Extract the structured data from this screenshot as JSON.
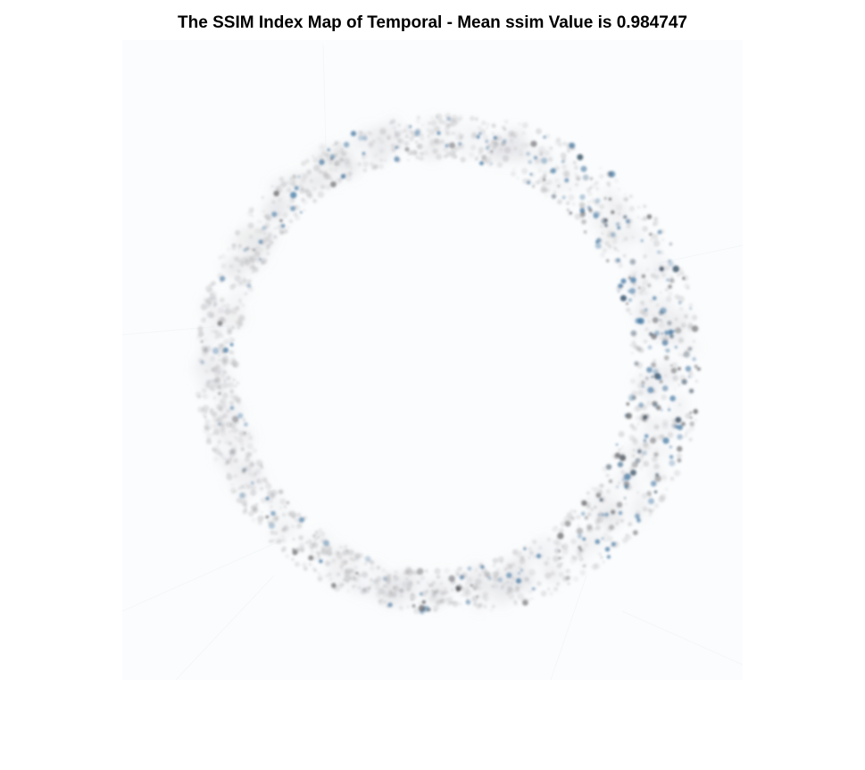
{
  "figure": {
    "title": "The SSIM Index Map of Temporal - Mean ssim Value is 0.984747"
  },
  "image": {
    "description_colors": {
      "background": "#ffffff",
      "ring_gray": "#6e6e6e",
      "ring_blue": "#2b5f86",
      "ring_dark": "#0f1f2d"
    }
  }
}
